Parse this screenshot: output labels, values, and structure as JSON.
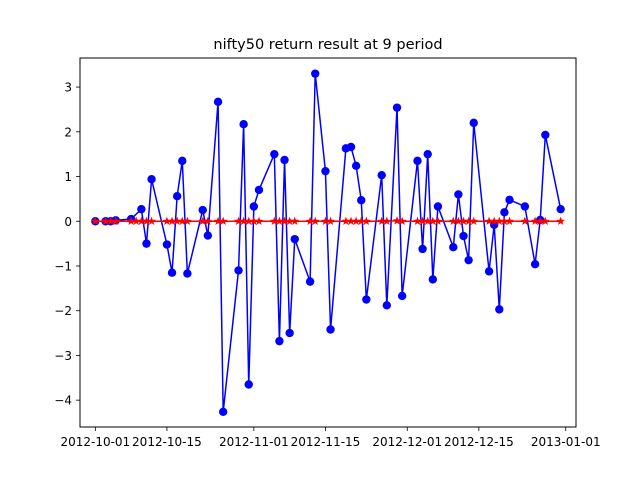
{
  "chart_data": {
    "type": "line",
    "title": "nifty50 return result at 9 period",
    "xlabel": "",
    "ylabel": "",
    "x_axis_type": "date",
    "xlim": [
      "2012-09-28",
      "2013-01-03"
    ],
    "ylim": [
      -4.6,
      3.65
    ],
    "x_ticks": [
      "2012-10-01",
      "2012-10-15",
      "2012-11-01",
      "2012-11-15",
      "2012-12-01",
      "2012-12-15",
      "2013-01-01"
    ],
    "y_ticks": [
      -4,
      -3,
      -2,
      -1,
      0,
      1,
      2,
      3
    ],
    "grid": false,
    "legend": "none",
    "series": [
      {
        "color": "#0000ff",
        "marker": "circle",
        "points": [
          [
            "2012-10-01",
            0.0
          ],
          [
            "2012-10-03",
            0.0
          ],
          [
            "2012-10-04",
            0.0
          ],
          [
            "2012-10-05",
            0.02
          ],
          [
            "2012-10-08",
            0.05
          ],
          [
            "2012-10-10",
            0.27
          ],
          [
            "2012-10-11",
            -0.5
          ],
          [
            "2012-10-12",
            0.94
          ],
          [
            "2012-10-15",
            -0.52
          ],
          [
            "2012-10-16",
            -1.15
          ],
          [
            "2012-10-17",
            0.56
          ],
          [
            "2012-10-18",
            1.35
          ],
          [
            "2012-10-19",
            -1.17
          ],
          [
            "2012-10-22",
            0.25
          ],
          [
            "2012-10-23",
            -0.32
          ],
          [
            "2012-10-25",
            2.67
          ],
          [
            "2012-10-26",
            -4.26
          ],
          [
            "2012-10-29",
            -1.1
          ],
          [
            "2012-10-30",
            2.17
          ],
          [
            "2012-10-31",
            -3.65
          ],
          [
            "2012-11-01",
            0.33
          ],
          [
            "2012-11-02",
            0.7
          ],
          [
            "2012-11-05",
            1.5
          ],
          [
            "2012-11-06",
            -2.68
          ],
          [
            "2012-11-07",
            1.37
          ],
          [
            "2012-11-08",
            -2.5
          ],
          [
            "2012-11-09",
            -0.4
          ],
          [
            "2012-11-12",
            -1.35
          ],
          [
            "2012-11-13",
            3.3
          ],
          [
            "2012-11-15",
            1.12
          ],
          [
            "2012-11-16",
            -2.42
          ],
          [
            "2012-11-19",
            1.63
          ],
          [
            "2012-11-20",
            1.66
          ],
          [
            "2012-11-21",
            1.24
          ],
          [
            "2012-11-22",
            0.47
          ],
          [
            "2012-11-23",
            -1.75
          ],
          [
            "2012-11-26",
            1.03
          ],
          [
            "2012-11-27",
            -1.88
          ],
          [
            "2012-11-29",
            2.54
          ],
          [
            "2012-11-30",
            -1.67
          ],
          [
            "2012-12-03",
            1.35
          ],
          [
            "2012-12-04",
            -0.62
          ],
          [
            "2012-12-05",
            1.5
          ],
          [
            "2012-12-06",
            -1.3
          ],
          [
            "2012-12-07",
            0.33
          ],
          [
            "2012-12-10",
            -0.58
          ],
          [
            "2012-12-11",
            0.6
          ],
          [
            "2012-12-12",
            -0.33
          ],
          [
            "2012-12-13",
            -0.87
          ],
          [
            "2012-12-14",
            2.2
          ],
          [
            "2012-12-17",
            -1.12
          ],
          [
            "2012-12-18",
            -0.08
          ],
          [
            "2012-12-19",
            -1.97
          ],
          [
            "2012-12-20",
            0.2
          ],
          [
            "2012-12-21",
            0.48
          ],
          [
            "2012-12-24",
            0.33
          ],
          [
            "2012-12-26",
            -0.96
          ],
          [
            "2012-12-27",
            0.03
          ],
          [
            "2012-12-28",
            1.93
          ],
          [
            "2012-12-31",
            0.27
          ]
        ]
      },
      {
        "color": "#ff0000",
        "marker": "star",
        "points": [
          [
            "2012-10-01",
            0.0
          ],
          [
            "2012-10-03",
            0.0
          ],
          [
            "2012-10-04",
            0.0
          ],
          [
            "2012-10-05",
            0.0
          ],
          [
            "2012-10-08",
            0.0
          ],
          [
            "2012-10-09",
            0.0
          ],
          [
            "2012-10-10",
            0.0
          ],
          [
            "2012-10-11",
            0.0
          ],
          [
            "2012-10-12",
            0.0
          ],
          [
            "2012-10-15",
            0.0
          ],
          [
            "2012-10-16",
            0.0
          ],
          [
            "2012-10-17",
            0.0
          ],
          [
            "2012-10-18",
            0.0
          ],
          [
            "2012-10-19",
            0.0
          ],
          [
            "2012-10-22",
            0.0
          ],
          [
            "2012-10-23",
            0.0
          ],
          [
            "2012-10-25",
            0.0
          ],
          [
            "2012-10-26",
            0.0
          ],
          [
            "2012-10-29",
            0.0
          ],
          [
            "2012-10-30",
            0.0
          ],
          [
            "2012-10-31",
            0.0
          ],
          [
            "2012-11-01",
            0.0
          ],
          [
            "2012-11-02",
            0.0
          ],
          [
            "2012-11-05",
            0.0
          ],
          [
            "2012-11-06",
            0.0
          ],
          [
            "2012-11-07",
            0.0
          ],
          [
            "2012-11-08",
            0.0
          ],
          [
            "2012-11-09",
            0.0
          ],
          [
            "2012-11-12",
            0.0
          ],
          [
            "2012-11-13",
            0.0
          ],
          [
            "2012-11-15",
            0.0
          ],
          [
            "2012-11-16",
            0.0
          ],
          [
            "2012-11-19",
            0.0
          ],
          [
            "2012-11-20",
            0.0
          ],
          [
            "2012-11-21",
            0.0
          ],
          [
            "2012-11-22",
            0.0
          ],
          [
            "2012-11-23",
            0.0
          ],
          [
            "2012-11-26",
            0.0
          ],
          [
            "2012-11-27",
            0.0
          ],
          [
            "2012-11-29",
            0.01
          ],
          [
            "2012-11-30",
            0.0
          ],
          [
            "2012-12-03",
            0.0
          ],
          [
            "2012-12-04",
            0.0
          ],
          [
            "2012-12-05",
            0.0
          ],
          [
            "2012-12-06",
            0.0
          ],
          [
            "2012-12-07",
            0.0
          ],
          [
            "2012-12-10",
            0.0
          ],
          [
            "2012-12-11",
            0.0
          ],
          [
            "2012-12-12",
            0.0
          ],
          [
            "2012-12-13",
            0.0
          ],
          [
            "2012-12-14",
            0.0
          ],
          [
            "2012-12-17",
            0.0
          ],
          [
            "2012-12-18",
            0.0
          ],
          [
            "2012-12-19",
            0.0
          ],
          [
            "2012-12-20",
            0.0
          ],
          [
            "2012-12-21",
            0.0
          ],
          [
            "2012-12-24",
            0.0
          ],
          [
            "2012-12-26",
            0.0
          ],
          [
            "2012-12-27",
            0.0
          ],
          [
            "2012-12-28",
            0.0
          ],
          [
            "2012-12-31",
            0.0
          ]
        ]
      }
    ]
  }
}
